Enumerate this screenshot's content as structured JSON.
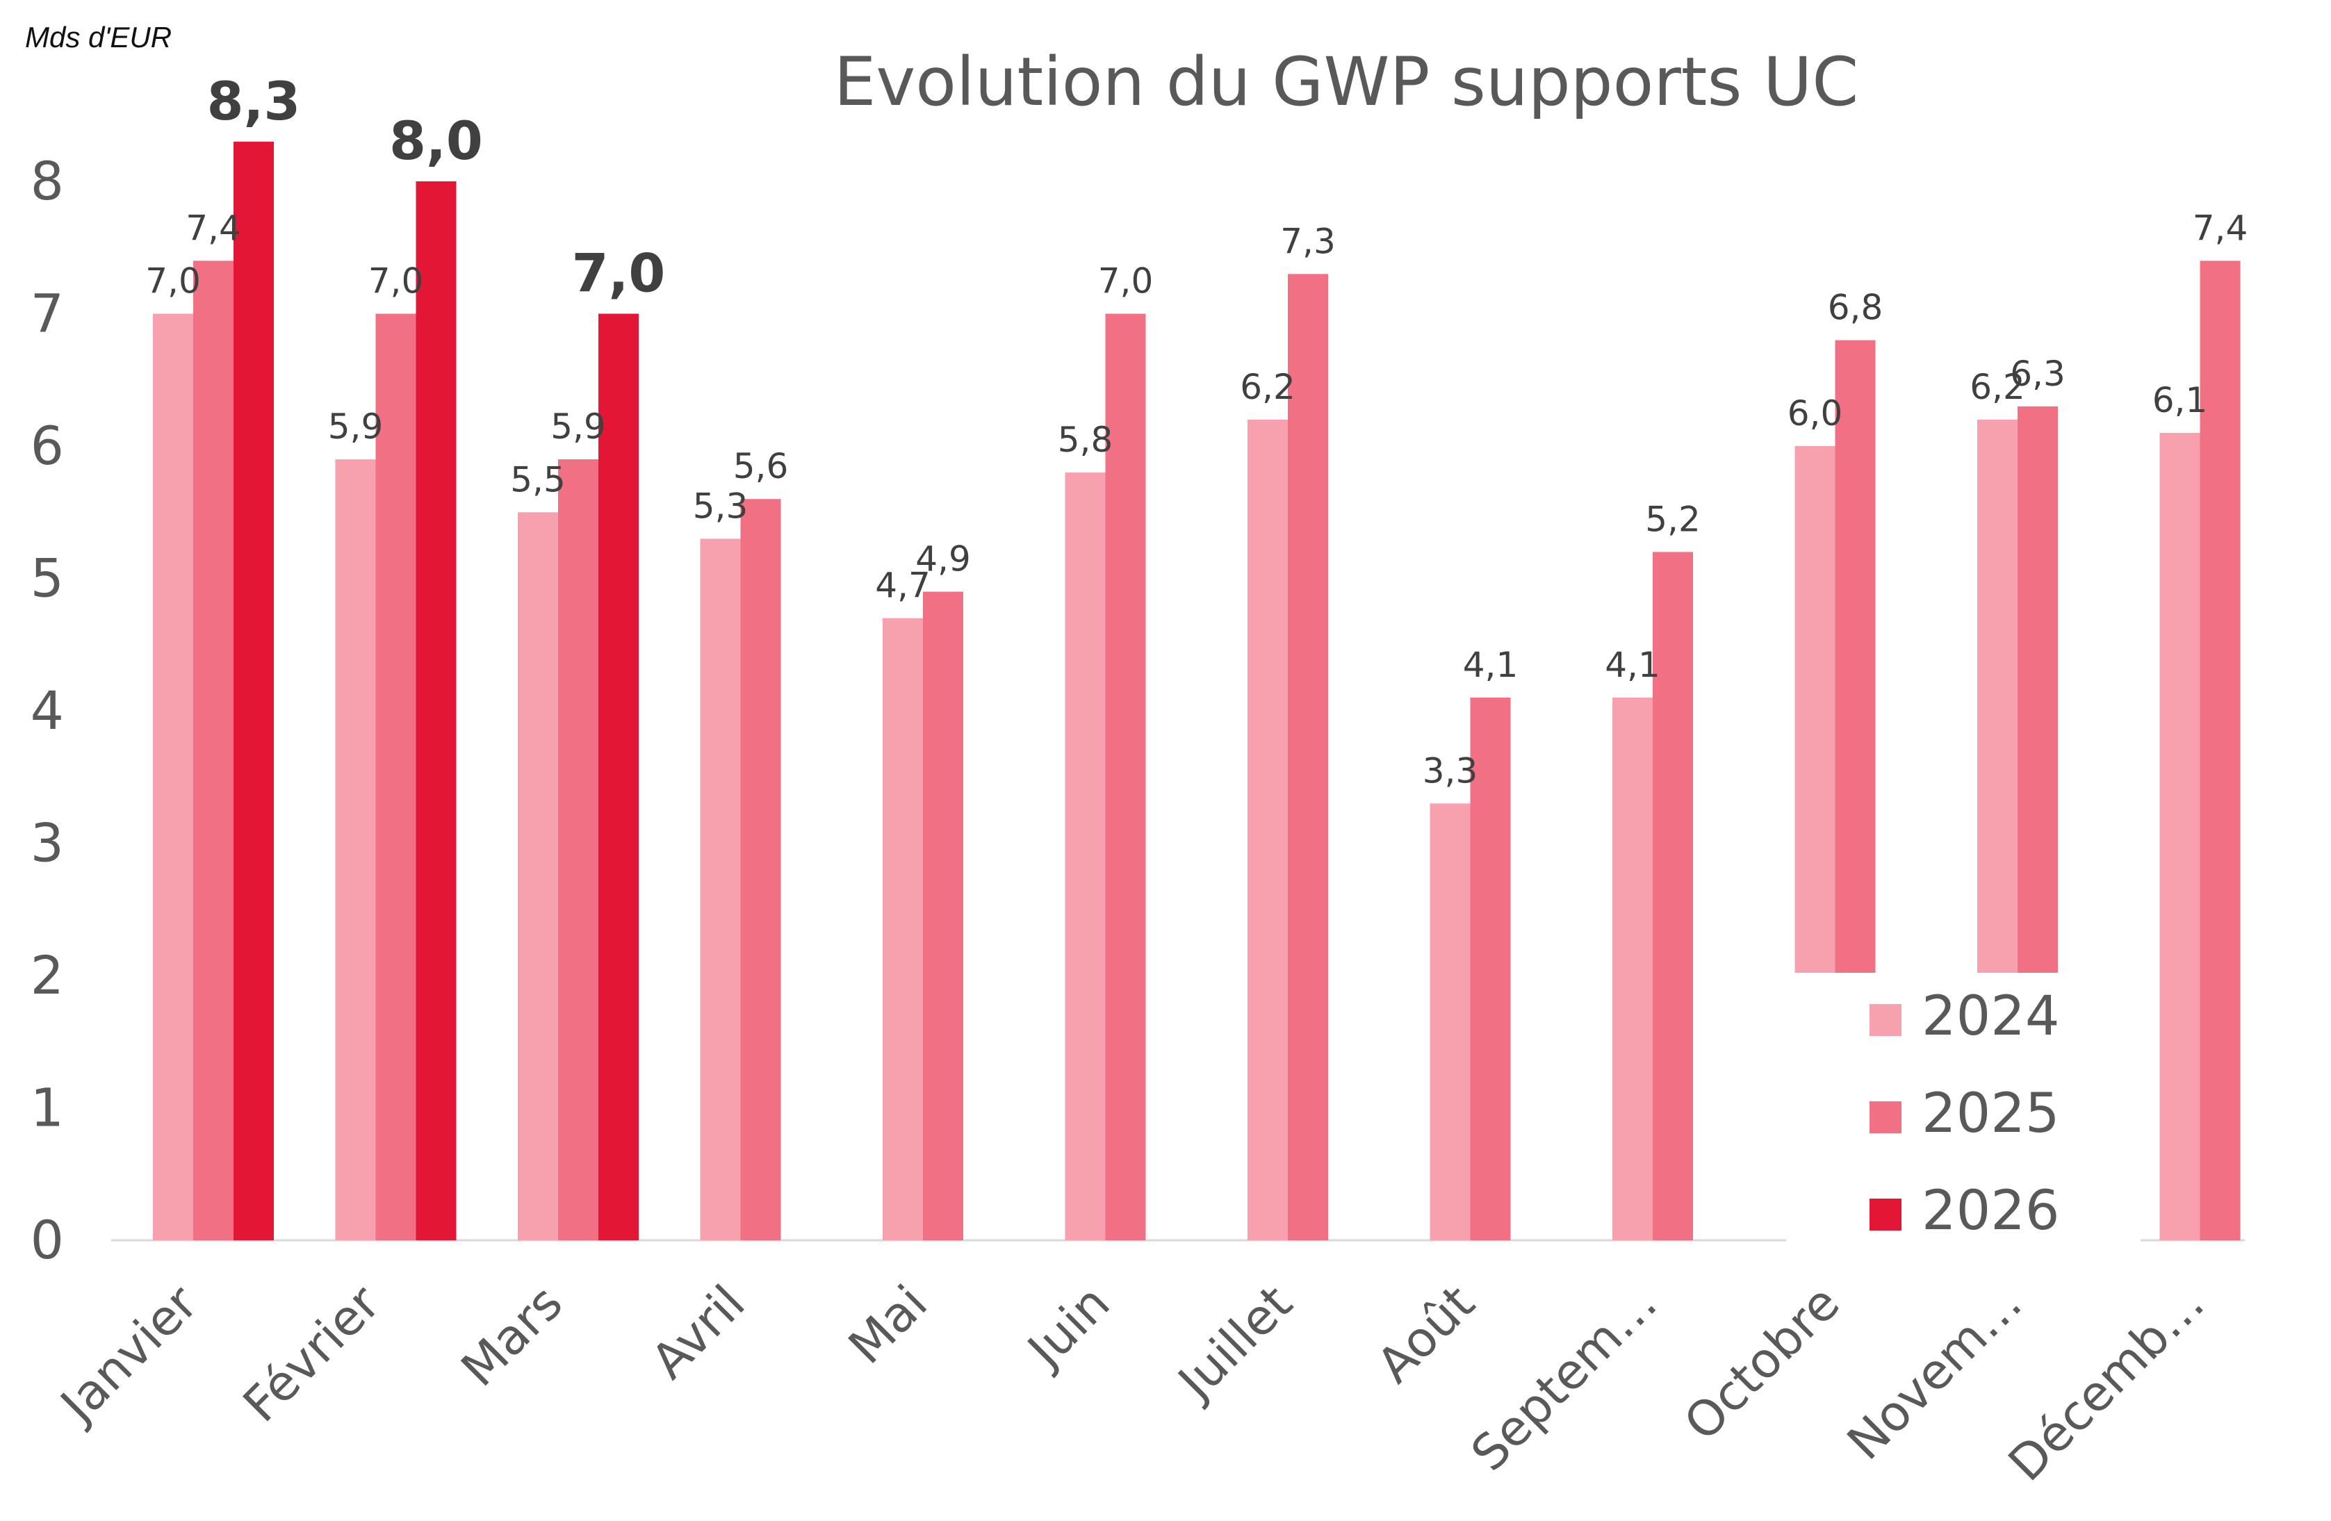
{
  "chart_data": {
    "type": "bar",
    "title": "Evolution du GWP supports UC",
    "unit_label": "Mds d'EUR",
    "categories": [
      "Janvier",
      "Février",
      "Mars",
      "Avril",
      "Mai",
      "Juin",
      "Juillet",
      "Août",
      "Septem…",
      "Octobre",
      "Novem…",
      "Décemb…"
    ],
    "series": [
      {
        "name": "2024",
        "color": "#f7a1ae",
        "values": [
          7.0,
          5.9,
          5.5,
          5.3,
          4.7,
          5.8,
          6.2,
          3.3,
          4.1,
          6.0,
          6.2,
          6.1
        ],
        "labels": [
          "7,0",
          "5,9",
          "5,5",
          "5,3",
          "4,7",
          "5,8",
          "6,2",
          "3,3",
          "4,1",
          "6,0",
          "6,2",
          "6,1"
        ]
      },
      {
        "name": "2025",
        "color": "#f27083",
        "values": [
          7.4,
          7.0,
          5.9,
          5.6,
          4.9,
          7.0,
          7.3,
          4.1,
          5.2,
          6.8,
          6.3,
          7.4
        ],
        "labels": [
          "7,4",
          "7,0",
          "5,9",
          "5,6",
          "4,9",
          "7,0",
          "7,3",
          "4,1",
          "5,2",
          "6,8",
          "6,3",
          "7,4"
        ]
      },
      {
        "name": "2026",
        "color": "#e31635",
        "values": [
          8.3,
          8.0,
          7.0,
          null,
          null,
          null,
          null,
          null,
          null,
          null,
          null,
          null
        ],
        "labels": [
          "8,3",
          "8,0",
          "7,0",
          "",
          "",
          "",
          "",
          "",
          "",
          "",
          "",
          ""
        ]
      }
    ],
    "y_ticks": [
      "0",
      "1",
      "2",
      "3",
      "4",
      "5",
      "6",
      "7",
      "8"
    ],
    "ylim": [
      0,
      8.5
    ],
    "grid": false,
    "legend": "bottom-right"
  }
}
